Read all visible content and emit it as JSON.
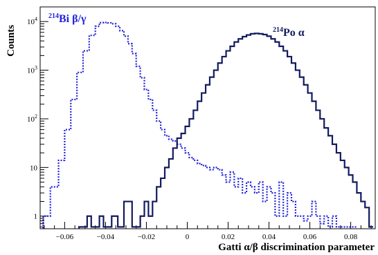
{
  "chart_data": {
    "type": "line",
    "title": "",
    "xlabel": "Gatti  α/β discrimination parameter",
    "ylabel": "Counts",
    "xlim": [
      -0.072,
      0.092
    ],
    "ylim": [
      0.55,
      20000
    ],
    "y_scale": "log",
    "grid": false,
    "x_ticks": [
      -0.06,
      -0.04,
      -0.02,
      0,
      0.02,
      0.04,
      0.06,
      0.08
    ],
    "x_tick_labels": [
      "−0.06",
      "−0.04",
      "−0.02",
      "0",
      "0.02",
      "0.04",
      "0.06",
      "0.08"
    ],
    "y_ticks": [
      1,
      10,
      100,
      1000,
      10000
    ],
    "y_tick_labels": [
      {
        "base": "1",
        "exp": ""
      },
      {
        "base": "10",
        "exp": ""
      },
      {
        "base": "10",
        "exp": "2"
      },
      {
        "base": "10",
        "exp": "3"
      },
      {
        "base": "10",
        "exp": "4"
      }
    ],
    "series": [
      {
        "name": "²¹⁴Bi β/γ",
        "color": "#2222dd",
        "style": "dotted",
        "x": [
          -0.0705,
          -0.067,
          -0.063,
          -0.06,
          -0.057,
          -0.054,
          -0.051,
          -0.048,
          -0.045,
          -0.043,
          -0.041,
          -0.039,
          -0.037,
          -0.035,
          -0.033,
          -0.031,
          -0.029,
          -0.027,
          -0.025,
          -0.023,
          -0.021,
          -0.019,
          -0.017,
          -0.015,
          -0.013,
          -0.011,
          -0.009,
          -0.007,
          -0.005,
          -0.003,
          -0.001,
          0.001,
          0.003,
          0.005,
          0.007,
          0.009,
          0.011,
          0.013,
          0.015,
          0.017,
          0.019,
          0.021,
          0.023,
          0.025,
          0.027,
          0.029,
          0.031,
          0.033,
          0.035,
          0.037,
          0.039,
          0.041,
          0.043,
          0.045,
          0.047,
          0.049,
          0.051,
          0.053,
          0.055,
          0.057,
          0.059,
          0.061,
          0.063,
          0.065,
          0.067,
          0.069,
          0.071,
          0.073,
          0.075,
          0.077,
          0.079,
          0.081
        ],
        "y": [
          1,
          4,
          14,
          60,
          250,
          900,
          2500,
          5200,
          8000,
          9500,
          9600,
          9400,
          9000,
          8000,
          6500,
          5000,
          3500,
          2200,
          1200,
          700,
          400,
          250,
          150,
          90,
          60,
          45,
          38,
          35,
          30,
          25,
          20,
          16,
          14,
          12,
          11,
          10,
          9,
          10,
          9,
          7,
          5,
          8,
          4,
          6,
          3,
          5,
          4,
          3,
          5,
          2,
          4,
          3,
          1,
          5,
          1,
          3,
          2,
          1,
          1,
          0.8,
          1,
          2,
          1,
          0.7,
          1,
          0.6,
          1,
          0.6,
          0.6,
          0.6,
          0.6,
          0.6
        ]
      },
      {
        "name": "²¹⁴Po α",
        "color": "#121a5e",
        "style": "solid",
        "x": [
          -0.053,
          -0.049,
          -0.047,
          -0.043,
          -0.041,
          -0.037,
          -0.034,
          -0.031,
          -0.027,
          -0.025,
          -0.023,
          -0.021,
          -0.019,
          -0.017,
          -0.015,
          -0.013,
          -0.011,
          -0.009,
          -0.007,
          -0.005,
          -0.003,
          -0.001,
          0.001,
          0.003,
          0.005,
          0.007,
          0.009,
          0.011,
          0.013,
          0.015,
          0.017,
          0.019,
          0.021,
          0.023,
          0.025,
          0.027,
          0.029,
          0.031,
          0.033,
          0.035,
          0.037,
          0.039,
          0.041,
          0.043,
          0.045,
          0.047,
          0.049,
          0.051,
          0.053,
          0.055,
          0.057,
          0.059,
          0.061,
          0.063,
          0.065,
          0.067,
          0.069,
          0.071,
          0.073,
          0.075,
          0.077,
          0.079,
          0.081,
          0.083,
          0.085,
          0.087,
          0.089
        ],
        "y": [
          0.6,
          1,
          0.6,
          1,
          0.6,
          1,
          0.6,
          2,
          0.6,
          0.6,
          1,
          2,
          1,
          2,
          4,
          6,
          10,
          15,
          25,
          40,
          50,
          70,
          100,
          150,
          230,
          340,
          500,
          720,
          1000,
          1400,
          1900,
          2500,
          3100,
          3800,
          4400,
          4900,
          5300,
          5600,
          5700,
          5600,
          5400,
          5000,
          4400,
          3800,
          3100,
          2500,
          1900,
          1400,
          1000,
          720,
          500,
          340,
          230,
          150,
          100,
          65,
          45,
          30,
          20,
          14,
          10,
          7,
          5,
          3,
          2,
          1.5,
          0.6
        ]
      }
    ],
    "annotations": [
      {
        "text": "Bi  β/γ",
        "sup": "214",
        "color": "#2222dd"
      },
      {
        "text": "Po  α",
        "sup": "214",
        "color": "#121a5e"
      }
    ]
  }
}
